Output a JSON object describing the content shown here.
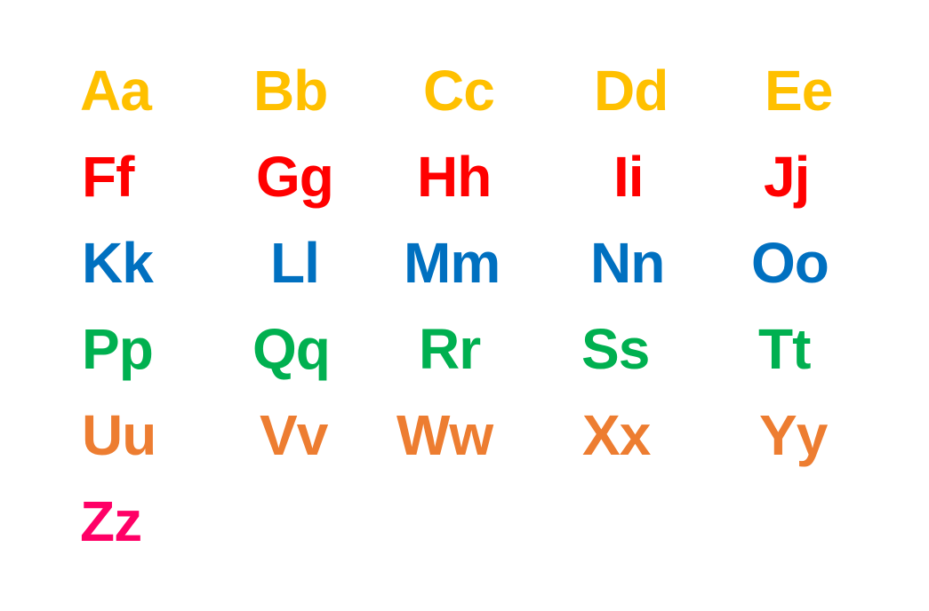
{
  "alphabet": {
    "rows": [
      {
        "color": "#FFC000",
        "letters": [
          "Aa",
          "Bb",
          "Cc",
          "Dd",
          "Ee"
        ]
      },
      {
        "color": "#FF0000",
        "letters": [
          "Ff",
          "Gg",
          "Hh",
          "Ii",
          "Jj"
        ]
      },
      {
        "color": "#0070C0",
        "letters": [
          "Kk",
          "Ll",
          "Mm",
          "Nn",
          "Oo"
        ]
      },
      {
        "color": "#00B050",
        "letters": [
          "Pp",
          "Qq",
          "Rr",
          "Ss",
          "Tt"
        ]
      },
      {
        "color": "#ED7D31",
        "letters": [
          "Uu",
          "Vv",
          "Ww",
          "Xx",
          "Yy"
        ]
      },
      {
        "color": "#FF0066",
        "letters": [
          "Zz"
        ]
      }
    ]
  }
}
